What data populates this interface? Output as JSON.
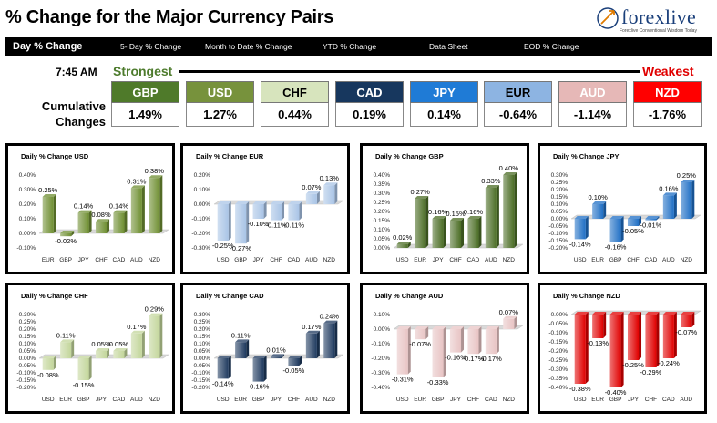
{
  "header": {
    "title": "% Change for the Major Currency Pairs",
    "logo_text": "forexlive",
    "logo_tagline": "Forexlive Conventional Wisdom Today"
  },
  "nav": [
    {
      "label": "Day % Change",
      "active": true
    },
    {
      "label": "5- Day % Change",
      "active": false
    },
    {
      "label": "Month to Date % Change",
      "active": false
    },
    {
      "label": "YTD % Change",
      "active": false
    },
    {
      "label": "Data Sheet",
      "active": false
    },
    {
      "label": "EOD % Change",
      "active": false
    }
  ],
  "summary": {
    "time": "7:45 AM",
    "strongest_label": "Strongest",
    "weakest_label": "Weakest",
    "cumulative_label_1": "Cumulative",
    "cumulative_label_2": "Changes",
    "currencies": [
      {
        "code": "GBP",
        "value": "1.49%",
        "bg": "#4f7a2a",
        "fg": "#ffffff"
      },
      {
        "code": "USD",
        "value": "1.27%",
        "bg": "#77923c",
        "fg": "#ffffff"
      },
      {
        "code": "CHF",
        "value": "0.44%",
        "bg": "#d7e4bd",
        "fg": "#000000"
      },
      {
        "code": "CAD",
        "value": "0.19%",
        "bg": "#17375e",
        "fg": "#ffffff"
      },
      {
        "code": "JPY",
        "value": "0.14%",
        "bg": "#1f7bd6",
        "fg": "#ffffff"
      },
      {
        "code": "EUR",
        "value": "-0.64%",
        "bg": "#8db4e2",
        "fg": "#000000"
      },
      {
        "code": "AUD",
        "value": "-1.14%",
        "bg": "#e6b8b7",
        "fg": "#ffffff"
      },
      {
        "code": "NZD",
        "value": "-1.76%",
        "bg": "#ff0000",
        "fg": "#ffffff"
      }
    ]
  },
  "colors": {
    "USD": "#6f8f32",
    "EUR": "#a9c4e6",
    "GBP": "#4c6e26",
    "JPY": "#1f6fc5",
    "CHF": "#c3d69b",
    "CAD": "#1f3a5f",
    "AUD": "#e8c4c4",
    "NZD": "#e00000"
  },
  "chart_data": [
    {
      "type": "bar",
      "title": "Daily % Change USD",
      "base": "USD",
      "categories": [
        "EUR",
        "GBP",
        "JPY",
        "CHF",
        "CAD",
        "AUD",
        "NZD"
      ],
      "values": [
        0.25,
        -0.02,
        0.14,
        0.08,
        0.14,
        0.31,
        0.38
      ],
      "labels": [
        "0.25%",
        "-0.02%",
        "0.14%",
        "0.08%",
        "0.14%",
        "0.31%",
        "0.38%"
      ],
      "ylim": [
        -0.1,
        0.4
      ],
      "yticks": [
        "-0.10%",
        "0.00%",
        "0.10%",
        "0.20%",
        "0.30%",
        "0.40%"
      ]
    },
    {
      "type": "bar",
      "title": "Daily % Change EUR",
      "base": "EUR",
      "categories": [
        "USD",
        "GBP",
        "JPY",
        "CHF",
        "CAD",
        "AUD",
        "NZD"
      ],
      "values": [
        -0.25,
        -0.27,
        -0.1,
        -0.11,
        -0.11,
        0.07,
        0.13
      ],
      "labels": [
        "-0.25%",
        "-0.27%",
        "-0.10%",
        "-0.11%",
        "-0.11%",
        "0.07%",
        "0.13%"
      ],
      "ylim": [
        -0.3,
        0.2
      ],
      "yticks": [
        "-0.30%",
        "-0.20%",
        "-0.10%",
        "0.00%",
        "0.10%",
        "0.20%"
      ]
    },
    {
      "type": "bar",
      "title": "Daily % Change GBP",
      "base": "GBP",
      "categories": [
        "USD",
        "EUR",
        "JPY",
        "CHF",
        "CAD",
        "AUD",
        "NZD"
      ],
      "values": [
        0.02,
        0.27,
        0.16,
        0.15,
        0.16,
        0.33,
        0.4
      ],
      "labels": [
        "0.02%",
        "0.27%",
        "0.16%",
        "0.15%",
        "0.16%",
        "0.33%",
        "0.40%"
      ],
      "ylim": [
        0,
        0.4
      ],
      "yticks": [
        "0.00%",
        "0.05%",
        "0.10%",
        "0.15%",
        "0.20%",
        "0.25%",
        "0.30%",
        "0.35%",
        "0.40%"
      ]
    },
    {
      "type": "bar",
      "title": "Daily % Change JPY",
      "base": "JPY",
      "categories": [
        "USD",
        "EUR",
        "GBP",
        "CHF",
        "CAD",
        "AUD",
        "NZD"
      ],
      "values": [
        -0.14,
        0.1,
        -0.16,
        -0.05,
        -0.01,
        0.16,
        0.25
      ],
      "labels": [
        "-0.14%",
        "0.10%",
        "-0.16%",
        "-0.05%",
        "-0.01%",
        "0.16%",
        "0.25%"
      ],
      "ylim": [
        -0.2,
        0.3
      ],
      "yticks": [
        "-0.20%",
        "-0.15%",
        "-0.10%",
        "-0.05%",
        "0.00%",
        "0.05%",
        "0.10%",
        "0.15%",
        "0.20%",
        "0.25%",
        "0.30%"
      ]
    },
    {
      "type": "bar",
      "title": "Daily % Change CHF",
      "base": "CHF",
      "categories": [
        "USD",
        "EUR",
        "GBP",
        "JPY",
        "CAD",
        "AUD",
        "NZD"
      ],
      "values": [
        -0.08,
        0.11,
        -0.15,
        0.05,
        0.05,
        0.17,
        0.29
      ],
      "labels": [
        "-0.08%",
        "0.11%",
        "-0.15%",
        "0.05%",
        "0.05%",
        "0.17%",
        "0.29%"
      ],
      "ylim": [
        -0.2,
        0.3
      ],
      "yticks": [
        "-0.20%",
        "-0.15%",
        "-0.10%",
        "-0.05%",
        "0.00%",
        "0.05%",
        "0.10%",
        "0.15%",
        "0.20%",
        "0.25%",
        "0.30%"
      ]
    },
    {
      "type": "bar",
      "title": "Daily % Change CAD",
      "base": "CAD",
      "categories": [
        "USD",
        "EUR",
        "GBP",
        "JPY",
        "CHF",
        "AUD",
        "NZD"
      ],
      "values": [
        -0.14,
        0.11,
        -0.16,
        0.01,
        -0.05,
        0.17,
        0.24
      ],
      "labels": [
        "-0.14%",
        "0.11%",
        "-0.16%",
        "0.01%",
        "-0.05%",
        "0.17%",
        "0.24%"
      ],
      "ylim": [
        -0.2,
        0.3
      ],
      "yticks": [
        "-0.20%",
        "-0.15%",
        "-0.10%",
        "-0.05%",
        "0.00%",
        "0.05%",
        "0.10%",
        "0.15%",
        "0.20%",
        "0.25%",
        "0.30%"
      ]
    },
    {
      "type": "bar",
      "title": "Daily % Change AUD",
      "base": "AUD",
      "categories": [
        "USD",
        "EUR",
        "GBP",
        "JPY",
        "CHF",
        "CAD",
        "NZD"
      ],
      "values": [
        -0.31,
        -0.07,
        -0.33,
        -0.16,
        -0.17,
        -0.17,
        0.07
      ],
      "labels": [
        "-0.31%",
        "-0.07%",
        "-0.33%",
        "-0.16%",
        "-0.17%",
        "-0.17%",
        "0.07%"
      ],
      "ylim": [
        -0.4,
        0.1
      ],
      "yticks": [
        "-0.40%",
        "-0.30%",
        "-0.20%",
        "-0.10%",
        "0.00%",
        "0.10%"
      ]
    },
    {
      "type": "bar",
      "title": "Daily % Change NZD",
      "base": "NZD",
      "categories": [
        "USD",
        "EUR",
        "GBP",
        "JPY",
        "CHF",
        "CAD",
        "AUD"
      ],
      "values": [
        -0.38,
        -0.13,
        -0.4,
        -0.25,
        -0.29,
        -0.24,
        -0.07
      ],
      "labels": [
        "-0.38%",
        "-0.13%",
        "-0.40%",
        "-0.25%",
        "-0.29%",
        "-0.24%",
        "-0.07%"
      ],
      "ylim": [
        -0.4,
        0
      ],
      "yticks": [
        "-0.40%",
        "-0.35%",
        "-0.30%",
        "-0.25%",
        "-0.20%",
        "-0.15%",
        "-0.10%",
        "-0.05%",
        "0.00%"
      ]
    }
  ]
}
